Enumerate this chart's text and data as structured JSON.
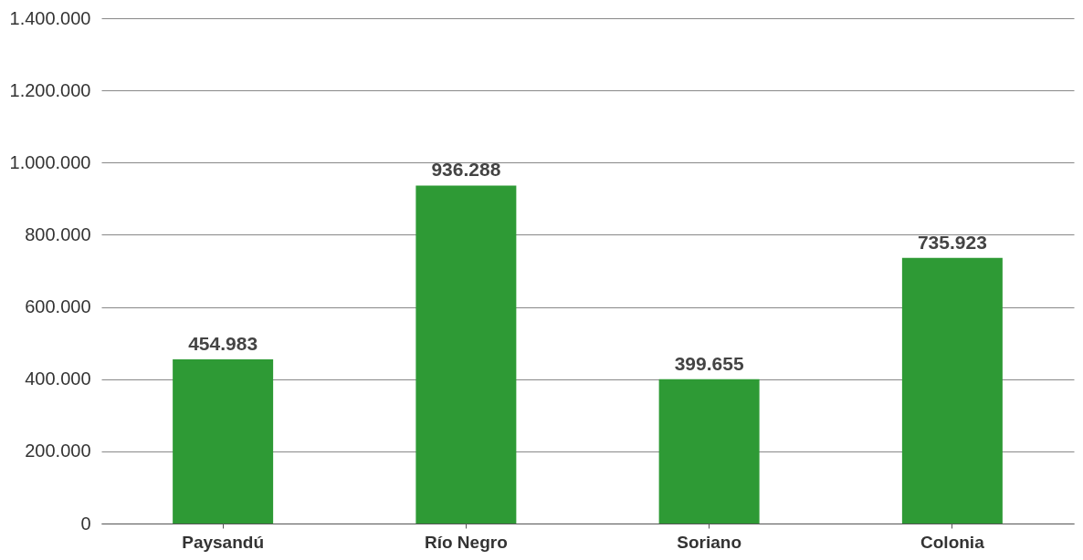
{
  "chart_data": {
    "type": "bar",
    "categories": [
      "Paysandú",
      "Río Negro",
      "Soriano",
      "Colonia"
    ],
    "values": [
      454983,
      936288,
      399655,
      735923
    ],
    "value_labels": [
      "454.983",
      "936.288",
      "399.655",
      "735.923"
    ],
    "color": "#2e9a35",
    "ylim": [
      0,
      1400000
    ],
    "yticks": [
      {
        "value": 0,
        "label": "0"
      },
      {
        "value": 200000,
        "label": "200.000"
      },
      {
        "value": 400000,
        "label": "400.000"
      },
      {
        "value": 600000,
        "label": "600.000"
      },
      {
        "value": 800000,
        "label": "800.000"
      },
      {
        "value": 1000000,
        "label": "1.000.000"
      },
      {
        "value": 1200000,
        "label": "1.200.000"
      },
      {
        "value": 1400000,
        "label": "1.400.000"
      }
    ],
    "grid": "y"
  }
}
